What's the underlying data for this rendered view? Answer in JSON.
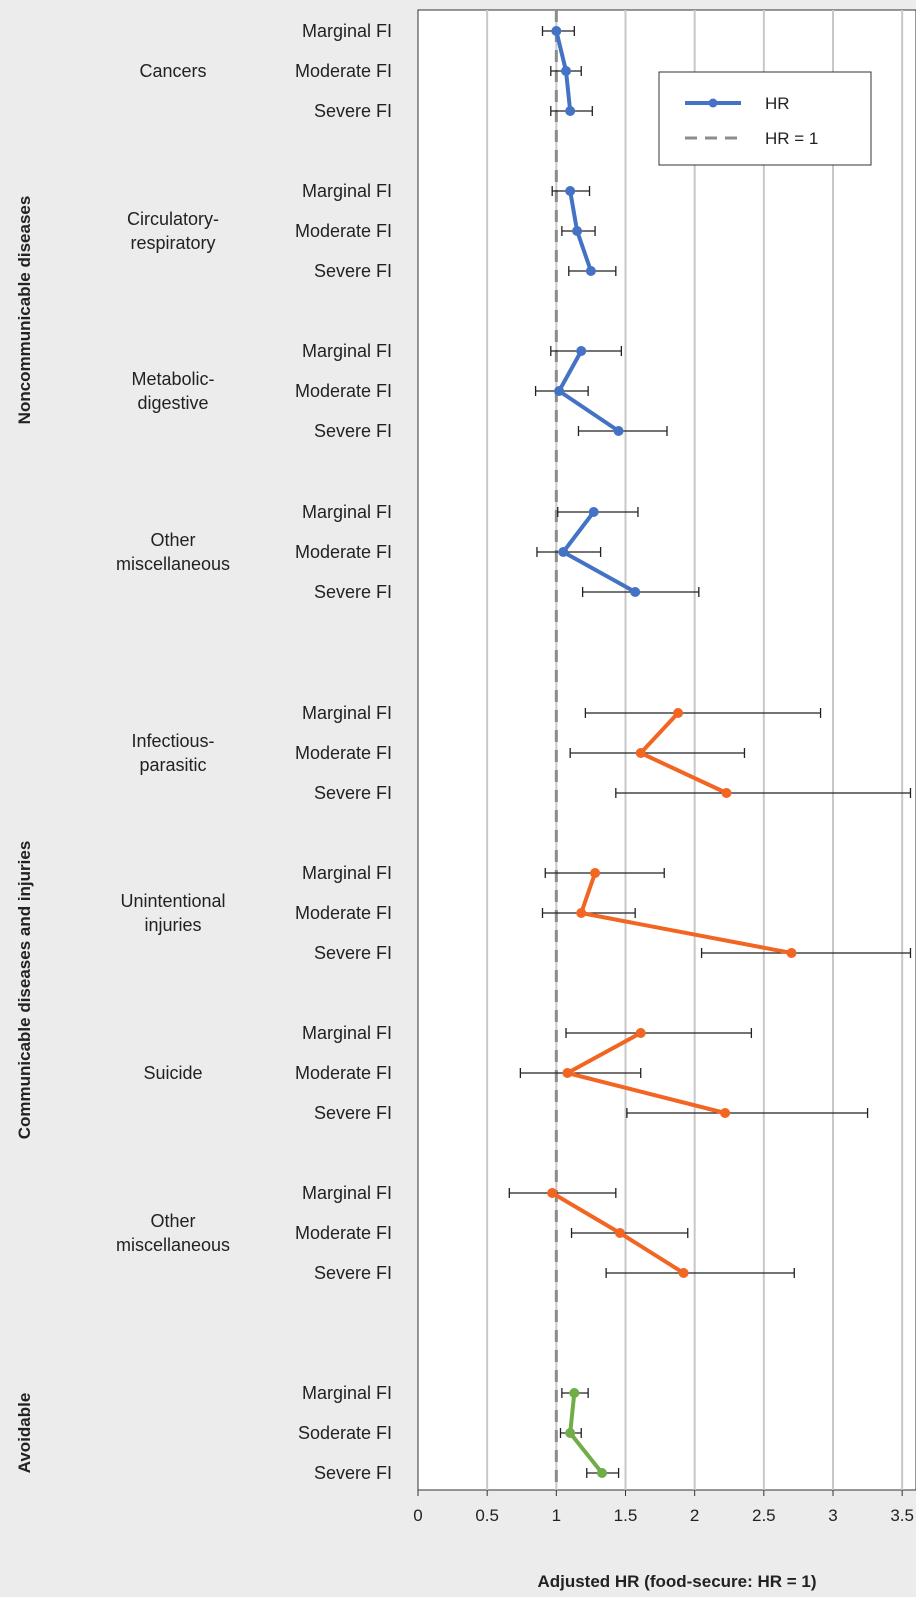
{
  "chart_data": {
    "type": "scatter",
    "xlabel": "Adjusted HR (food-secure: HR = 1)",
    "xlim": [
      0,
      3.6
    ],
    "xticks": [
      "0",
      "0.5",
      "1",
      "1.5",
      "2",
      "2.5",
      "3",
      "3.5"
    ],
    "xtick_values": [
      0,
      0.5,
      1,
      1.5,
      2,
      2.5,
      3,
      3.5
    ],
    "reference_line": 1,
    "grid": true,
    "legend": {
      "placement": "top-right",
      "entries": [
        "HR",
        "HR = 1"
      ]
    },
    "colors": {
      "noncommunicable": "#4472c4",
      "communicable": "#f26522",
      "avoidable": "#70ad47",
      "reference": "#8c8c8c",
      "errorbar": "#222222"
    },
    "groups": [
      {
        "name": "Noncommunicable diseases",
        "color_key": "noncommunicable",
        "causes": [
          {
            "name": "Cancers",
            "points": [
              {
                "level": "Marginal FI",
                "hr": 1.0,
                "lo": 0.9,
                "hi": 1.13
              },
              {
                "level": "Moderate FI",
                "hr": 1.07,
                "lo": 0.96,
                "hi": 1.18
              },
              {
                "level": "Severe FI",
                "hr": 1.1,
                "lo": 0.96,
                "hi": 1.26
              }
            ]
          },
          {
            "name": "Circulatory-\nrespiratory",
            "points": [
              {
                "level": "Marginal FI",
                "hr": 1.1,
                "lo": 0.97,
                "hi": 1.24
              },
              {
                "level": "Moderate FI",
                "hr": 1.15,
                "lo": 1.04,
                "hi": 1.28
              },
              {
                "level": "Severe FI",
                "hr": 1.25,
                "lo": 1.09,
                "hi": 1.43
              }
            ]
          },
          {
            "name": "Metabolic-\ndigestive",
            "points": [
              {
                "level": "Marginal FI",
                "hr": 1.18,
                "lo": 0.96,
                "hi": 1.47
              },
              {
                "level": "Moderate FI",
                "hr": 1.02,
                "lo": 0.85,
                "hi": 1.23
              },
              {
                "level": "Severe FI",
                "hr": 1.45,
                "lo": 1.16,
                "hi": 1.8
              }
            ]
          },
          {
            "name": "Other\nmiscellaneous",
            "points": [
              {
                "level": "Marginal FI",
                "hr": 1.27,
                "lo": 1.01,
                "hi": 1.59
              },
              {
                "level": "Moderate FI",
                "hr": 1.05,
                "lo": 0.86,
                "hi": 1.32
              },
              {
                "level": "Severe FI",
                "hr": 1.57,
                "lo": 1.19,
                "hi": 2.03
              }
            ]
          }
        ]
      },
      {
        "name": "Communicable diseases and injuries",
        "color_key": "communicable",
        "causes": [
          {
            "name": "Infectious-\nparasitic",
            "points": [
              {
                "level": "Marginal FI",
                "hr": 1.88,
                "lo": 1.21,
                "hi": 2.91
              },
              {
                "level": "Moderate FI",
                "hr": 1.61,
                "lo": 1.1,
                "hi": 2.36
              },
              {
                "level": "Severe FI",
                "hr": 2.23,
                "lo": 1.43,
                "hi": 3.56
              }
            ]
          },
          {
            "name": "Unintentional\ninjuries",
            "points": [
              {
                "level": "Marginal FI",
                "hr": 1.28,
                "lo": 0.92,
                "hi": 1.78
              },
              {
                "level": "Moderate FI",
                "hr": 1.18,
                "lo": 0.9,
                "hi": 1.57
              },
              {
                "level": "Severe FI",
                "hr": 2.7,
                "lo": 2.05,
                "hi": 3.56
              }
            ]
          },
          {
            "name": "Suicide",
            "points": [
              {
                "level": "Marginal FI",
                "hr": 1.61,
                "lo": 1.07,
                "hi": 2.41
              },
              {
                "level": "Moderate FI",
                "hr": 1.08,
                "lo": 0.74,
                "hi": 1.61
              },
              {
                "level": "Severe FI",
                "hr": 2.22,
                "lo": 1.51,
                "hi": 3.25
              }
            ]
          },
          {
            "name": "Other\nmiscellaneous",
            "points": [
              {
                "level": "Marginal FI",
                "hr": 0.97,
                "lo": 0.66,
                "hi": 1.43
              },
              {
                "level": "Moderate FI",
                "hr": 1.46,
                "lo": 1.11,
                "hi": 1.95
              },
              {
                "level": "Severe FI",
                "hr": 1.92,
                "lo": 1.36,
                "hi": 2.72
              }
            ]
          }
        ]
      },
      {
        "name": "Avoidable",
        "color_key": "avoidable",
        "causes": [
          {
            "name": "",
            "points": [
              {
                "level": "Marginal FI",
                "hr": 1.13,
                "lo": 1.04,
                "hi": 1.23
              },
              {
                "level": "Soderate FI",
                "hr": 1.1,
                "lo": 1.03,
                "hi": 1.18
              },
              {
                "level": "Severe FI",
                "hr": 1.33,
                "lo": 1.22,
                "hi": 1.45
              }
            ]
          }
        ]
      }
    ]
  }
}
